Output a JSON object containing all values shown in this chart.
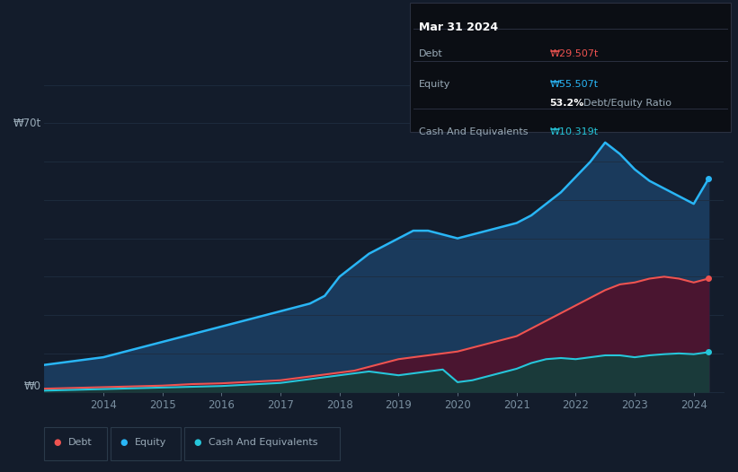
{
  "background_color": "#131c2b",
  "plot_bg_color": "#131c2b",
  "tooltip": {
    "date": "Mar 31 2024",
    "debt_label": "Debt",
    "debt_value": "₩29.507t",
    "equity_label": "Equity",
    "equity_value": "₩55.507t",
    "ratio_bold": "53.2%",
    "ratio_text": " Debt/Equity Ratio",
    "cash_label": "Cash And Equivalents",
    "cash_value": "₩10.319t"
  },
  "years": [
    2013.0,
    2013.25,
    2013.5,
    2013.75,
    2014.0,
    2014.25,
    2014.5,
    2014.75,
    2015.0,
    2015.25,
    2015.5,
    2015.75,
    2016.0,
    2016.25,
    2016.5,
    2016.75,
    2017.0,
    2017.25,
    2017.5,
    2017.75,
    2018.0,
    2018.25,
    2018.5,
    2018.75,
    2019.0,
    2019.25,
    2019.5,
    2019.75,
    2020.0,
    2020.25,
    2020.5,
    2020.75,
    2021.0,
    2021.25,
    2021.5,
    2021.75,
    2022.0,
    2022.25,
    2022.5,
    2022.75,
    2023.0,
    2023.25,
    2023.5,
    2023.75,
    2024.0,
    2024.25
  ],
  "equity": [
    7,
    7.5,
    8,
    8.5,
    9,
    10,
    11,
    12,
    13,
    14,
    15,
    16,
    17,
    18,
    19,
    20,
    21,
    22,
    23,
    25,
    30,
    33,
    36,
    38,
    40,
    42,
    42,
    41,
    40,
    41,
    42,
    43,
    44,
    46,
    49,
    52,
    56,
    60,
    65,
    62,
    58,
    55,
    53,
    51,
    49,
    55.507
  ],
  "debt": [
    0.8,
    0.9,
    1.0,
    1.1,
    1.2,
    1.3,
    1.4,
    1.5,
    1.6,
    1.8,
    2.0,
    2.1,
    2.2,
    2.4,
    2.6,
    2.8,
    3.0,
    3.5,
    4.0,
    4.5,
    5.0,
    5.5,
    6.5,
    7.5,
    8.5,
    9.0,
    9.5,
    10.0,
    10.5,
    11.5,
    12.5,
    13.5,
    14.5,
    16.5,
    18.5,
    20.5,
    22.5,
    24.5,
    26.5,
    28.0,
    28.5,
    29.5,
    30.0,
    29.5,
    28.5,
    29.507
  ],
  "cash": [
    0.3,
    0.4,
    0.5,
    0.6,
    0.7,
    0.8,
    0.9,
    1.0,
    1.1,
    1.2,
    1.3,
    1.4,
    1.5,
    1.7,
    1.9,
    2.1,
    2.3,
    2.8,
    3.3,
    3.8,
    4.3,
    4.8,
    5.3,
    4.8,
    4.3,
    4.8,
    5.3,
    5.8,
    2.5,
    3.0,
    4.0,
    5.0,
    6.0,
    7.5,
    8.5,
    8.8,
    8.5,
    9.0,
    9.5,
    9.5,
    9.0,
    9.5,
    9.8,
    10.0,
    9.8,
    10.319
  ],
  "equity_color": "#29b6f6",
  "debt_color": "#ef5350",
  "cash_color": "#26c6da",
  "equity_fill": "#1a3a5c",
  "debt_fill": "#4a1530",
  "cash_fill": "#1a3a3a",
  "grid_color": "#1e2d40",
  "text_color": "#9aabb8",
  "axis_label_color": "#7a8fa0",
  "ylabel_text": "₩70t",
  "y0_text": "₩0",
  "ylim": [
    0,
    80
  ],
  "xlim_min": 2013.0,
  "xlim_max": 2024.5,
  "xtick_years": [
    2014,
    2015,
    2016,
    2017,
    2018,
    2019,
    2020,
    2021,
    2022,
    2023,
    2024
  ],
  "legend": [
    {
      "label": "Debt",
      "color": "#ef5350"
    },
    {
      "label": "Equity",
      "color": "#29b6f6"
    },
    {
      "label": "Cash And Equivalents",
      "color": "#26c6da"
    }
  ],
  "tooltip_box_color": "#0b0e14",
  "tooltip_border_color": "#2a3040",
  "tooltip_sep_color": "#2a3040"
}
